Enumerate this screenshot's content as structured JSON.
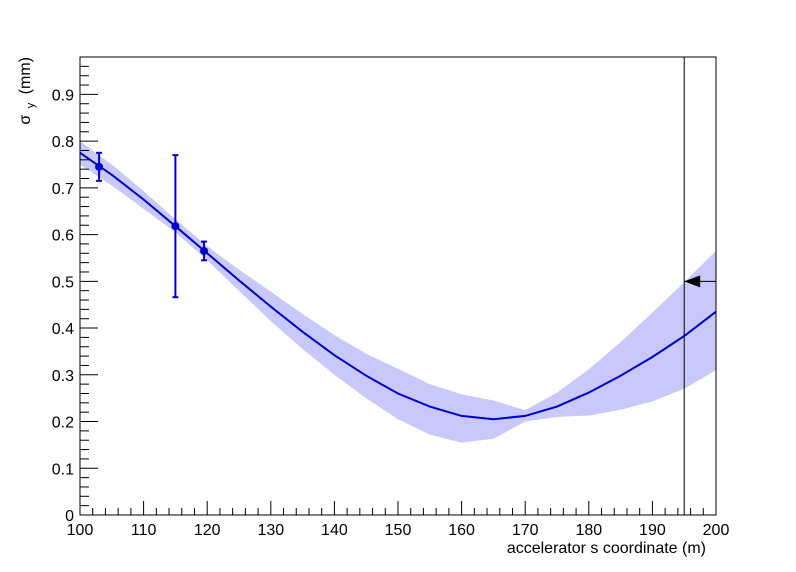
{
  "chart_data": {
    "type": "line",
    "title": "",
    "xlabel": "accelerator s coordinate (m)",
    "ylabel": {
      "symbol": "σ",
      "subscript": "y",
      "unit": "(mm)"
    },
    "xlim": [
      100,
      200
    ],
    "ylim": [
      0,
      0.98
    ],
    "x_ticks": [
      100,
      110,
      120,
      130,
      140,
      150,
      160,
      170,
      180,
      190,
      200
    ],
    "y_ticks": [
      0,
      0.1,
      0.2,
      0.3,
      0.4,
      0.5,
      0.6,
      0.7,
      0.8,
      0.9
    ],
    "grid": false,
    "colors": {
      "fit": "#0000cc",
      "band": "#c8c8fa",
      "points": "#0000cc",
      "marker": "#000000"
    },
    "fit_curve": {
      "x": [
        100,
        105,
        110,
        115,
        120,
        125,
        130,
        135,
        140,
        145,
        150,
        155,
        160,
        165,
        170,
        175,
        180,
        185,
        190,
        195,
        200
      ],
      "y": [
        0.775,
        0.728,
        0.675,
        0.618,
        0.56,
        0.502,
        0.446,
        0.392,
        0.342,
        0.298,
        0.26,
        0.232,
        0.212,
        0.205,
        0.212,
        0.232,
        0.262,
        0.298,
        0.338,
        0.383,
        0.435
      ]
    },
    "error_band": {
      "x": [
        100,
        105,
        110,
        115,
        120,
        125,
        130,
        135,
        140,
        145,
        150,
        155,
        160,
        165,
        170,
        175,
        180,
        185,
        190,
        195,
        200
      ],
      "lower": [
        0.75,
        0.705,
        0.655,
        0.605,
        0.545,
        0.48,
        0.415,
        0.355,
        0.3,
        0.25,
        0.205,
        0.172,
        0.155,
        0.163,
        0.2,
        0.21,
        0.213,
        0.225,
        0.243,
        0.27,
        0.31
      ],
      "upper": [
        0.8,
        0.75,
        0.693,
        0.633,
        0.575,
        0.525,
        0.478,
        0.43,
        0.385,
        0.345,
        0.313,
        0.28,
        0.258,
        0.245,
        0.224,
        0.262,
        0.312,
        0.37,
        0.433,
        0.498,
        0.565
      ]
    },
    "points": [
      {
        "x": 103,
        "y": 0.745,
        "err": 0.03
      },
      {
        "x": 115,
        "y": 0.618,
        "err": 0.152
      },
      {
        "x": 119.5,
        "y": 0.565,
        "err": 0.02
      }
    ],
    "marker": {
      "x": 195,
      "y": 0.5
    }
  }
}
